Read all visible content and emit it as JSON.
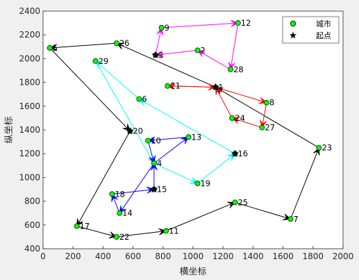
{
  "chart_data": {
    "type": "scatter",
    "title": "",
    "xlabel": "横坐标",
    "ylabel": "纵坐标",
    "xlim": [
      0,
      2000
    ],
    "ylim": [
      400,
      2400
    ],
    "xticks": [
      0,
      200,
      400,
      600,
      800,
      1000,
      1200,
      1400,
      1600,
      1800,
      2000
    ],
    "yticks": [
      400,
      600,
      800,
      1000,
      1200,
      1400,
      1600,
      1800,
      2000,
      2200,
      2400
    ],
    "grid": false,
    "legend": {
      "placement": "top-right",
      "entries": [
        {
          "label": "城市",
          "marker": "circle",
          "color": "#00ff00"
        },
        {
          "label": "起点",
          "marker": "star",
          "color": "#000000"
        }
      ]
    },
    "cities": [
      {
        "id": "1",
        "x": 1150,
        "y": 1760
      },
      {
        "id": "3",
        "x": 750,
        "y": 2030
      },
      {
        "id": "4",
        "x": 740,
        "y": 1120
      },
      {
        "id": "5",
        "x": 45,
        "y": 2090
      },
      {
        "id": "7",
        "x": 1650,
        "y": 650
      },
      {
        "id": "8",
        "x": 1490,
        "y": 1630
      },
      {
        "id": "9",
        "x": 790,
        "y": 2260
      },
      {
        "id": "10",
        "x": 700,
        "y": 1310
      },
      {
        "id": "11",
        "x": 820,
        "y": 550
      },
      {
        "id": "12",
        "x": 1300,
        "y": 2300
      },
      {
        "id": "13",
        "x": 970,
        "y": 1340
      },
      {
        "id": "14",
        "x": 510,
        "y": 700
      },
      {
        "id": "15",
        "x": 740,
        "y": 900
      },
      {
        "id": "16",
        "x": 1280,
        "y": 1200
      },
      {
        "id": "17",
        "x": 225,
        "y": 590
      },
      {
        "id": "18",
        "x": 460,
        "y": 860
      },
      {
        "id": "19",
        "x": 1030,
        "y": 950
      },
      {
        "id": "20",
        "x": 580,
        "y": 1390
      },
      {
        "id": "21",
        "x": 830,
        "y": 1770
      },
      {
        "id": "22",
        "x": 490,
        "y": 500
      },
      {
        "id": "23",
        "x": 1840,
        "y": 1250
      },
      {
        "id": "24",
        "x": 1260,
        "y": 1500
      },
      {
        "id": "25",
        "x": 1280,
        "y": 790
      },
      {
        "id": "26",
        "x": 490,
        "y": 2130
      },
      {
        "id": "27",
        "x": 1460,
        "y": 1420
      },
      {
        "id": "28",
        "x": 1250,
        "y": 1910
      },
      {
        "id": "29",
        "x": 350,
        "y": 1980
      },
      {
        "id": "6",
        "x": 640,
        "y": 1660
      },
      {
        "id": "2",
        "x": 1030,
        "y": 2070
      }
    ],
    "start_points": [
      {
        "x": 750,
        "y": 2030
      },
      {
        "x": 1150,
        "y": 1760
      },
      {
        "x": 580,
        "y": 1390
      },
      {
        "x": 1280,
        "y": 1200
      },
      {
        "x": 740,
        "y": 900
      }
    ],
    "routes": [
      {
        "color": "#000000",
        "path": [
          [
            1150,
            1760
          ],
          [
            490,
            2130
          ],
          [
            45,
            2090
          ],
          [
            580,
            1390
          ],
          [
            225,
            590
          ],
          [
            490,
            500
          ],
          [
            820,
            550
          ],
          [
            1280,
            790
          ],
          [
            1650,
            650
          ],
          [
            1840,
            1250
          ],
          [
            1150,
            1760
          ]
        ]
      },
      {
        "color": "#ff00ff",
        "path": [
          [
            750,
            2030
          ],
          [
            790,
            2260
          ],
          [
            1300,
            2300
          ],
          [
            1250,
            1910
          ],
          [
            1030,
            2070
          ],
          [
            750,
            2030
          ]
        ]
      },
      {
        "color": "#ff0000",
        "path": [
          [
            1150,
            1760
          ],
          [
            1490,
            1630
          ],
          [
            1460,
            1420
          ],
          [
            1260,
            1500
          ],
          [
            1150,
            1760
          ],
          [
            830,
            1770
          ],
          [
            1150,
            1760
          ]
        ]
      },
      {
        "color": "#00ffff",
        "path": [
          [
            1280,
            1200
          ],
          [
            640,
            1660
          ],
          [
            350,
            1980
          ],
          [
            740,
            1120
          ],
          [
            1030,
            950
          ],
          [
            1280,
            1200
          ]
        ]
      },
      {
        "color": "#0000ff",
        "path": [
          [
            740,
            900
          ],
          [
            740,
            1120
          ],
          [
            970,
            1340
          ],
          [
            700,
            1310
          ],
          [
            740,
            1120
          ],
          [
            510,
            700
          ],
          [
            460,
            860
          ],
          [
            740,
            900
          ]
        ]
      }
    ]
  }
}
